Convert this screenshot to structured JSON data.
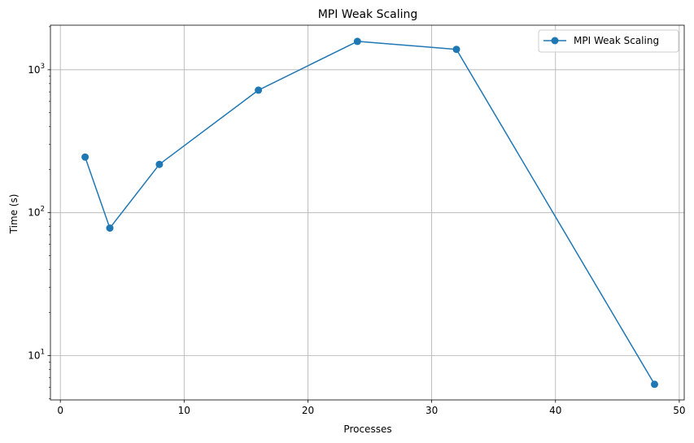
{
  "chart_data": {
    "type": "line",
    "title": "MPI Weak Scaling",
    "xlabel": "Processes",
    "ylabel": "Time (s)",
    "y_scale": "log",
    "xlim": [
      -0.8,
      50.4
    ],
    "ylim": [
      4.9,
      2050
    ],
    "x_ticks": [
      0,
      10,
      20,
      30,
      40,
      50
    ],
    "y_ticks": [
      {
        "value": 10,
        "base": "10",
        "exp": "1"
      },
      {
        "value": 100,
        "base": "10",
        "exp": "2"
      },
      {
        "value": 1000,
        "base": "10",
        "exp": "3"
      }
    ],
    "grid": true,
    "legend_position": "top-right",
    "series": [
      {
        "name": "MPI Weak Scaling",
        "color": "#1f77b4",
        "marker": "circle",
        "x": [
          2,
          4,
          8,
          16,
          24,
          32,
          48
        ],
        "y": [
          245,
          78,
          218,
          720,
          1580,
          1390,
          6.3
        ]
      }
    ]
  }
}
